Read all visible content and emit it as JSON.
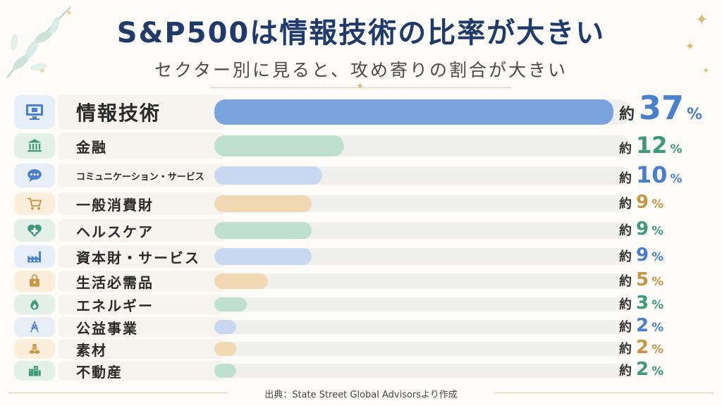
{
  "title": "S&P500は情報技術の比率が大きい",
  "subtitle": "セクター別に見ると、攻め寄りの割合が大きい",
  "source": "出典：State Street Global Advisorsより作成",
  "prefix": "約",
  "unit": "%",
  "colors": {
    "blue": "#7aa4de",
    "blueLight": "#c9d8f0",
    "green": "#bfe0cf",
    "tan": "#f2d9b3",
    "textBlue": "#4a7fce",
    "textGreen": "#3f9a7d",
    "textTan": "#c99546"
  },
  "chart_data": {
    "type": "bar",
    "orientation": "horizontal",
    "categories": [
      "情報技術",
      "金融",
      "コミュニケーション・サービス",
      "一般消費財",
      "ヘルスケア",
      "資本財・サービス",
      "生活必需品",
      "エネルギー",
      "公益事業",
      "素材",
      "不動産"
    ],
    "values": [
      37,
      12,
      10,
      9,
      9,
      9,
      5,
      3,
      2,
      2,
      2
    ],
    "labels": [
      "37",
      "12",
      "10",
      "9",
      "9",
      "9",
      "5",
      "3",
      "2",
      "2",
      "2"
    ],
    "icons": [
      "monitor-chip-icon",
      "bank-icon",
      "chat-bubble-icon",
      "cart-icon",
      "heart-cross-icon",
      "factory-icon",
      "shopping-bag-icon",
      "flame-icon",
      "power-tower-icon",
      "coins-icon",
      "buildings-icon"
    ],
    "xlim": [
      0,
      37
    ]
  }
}
